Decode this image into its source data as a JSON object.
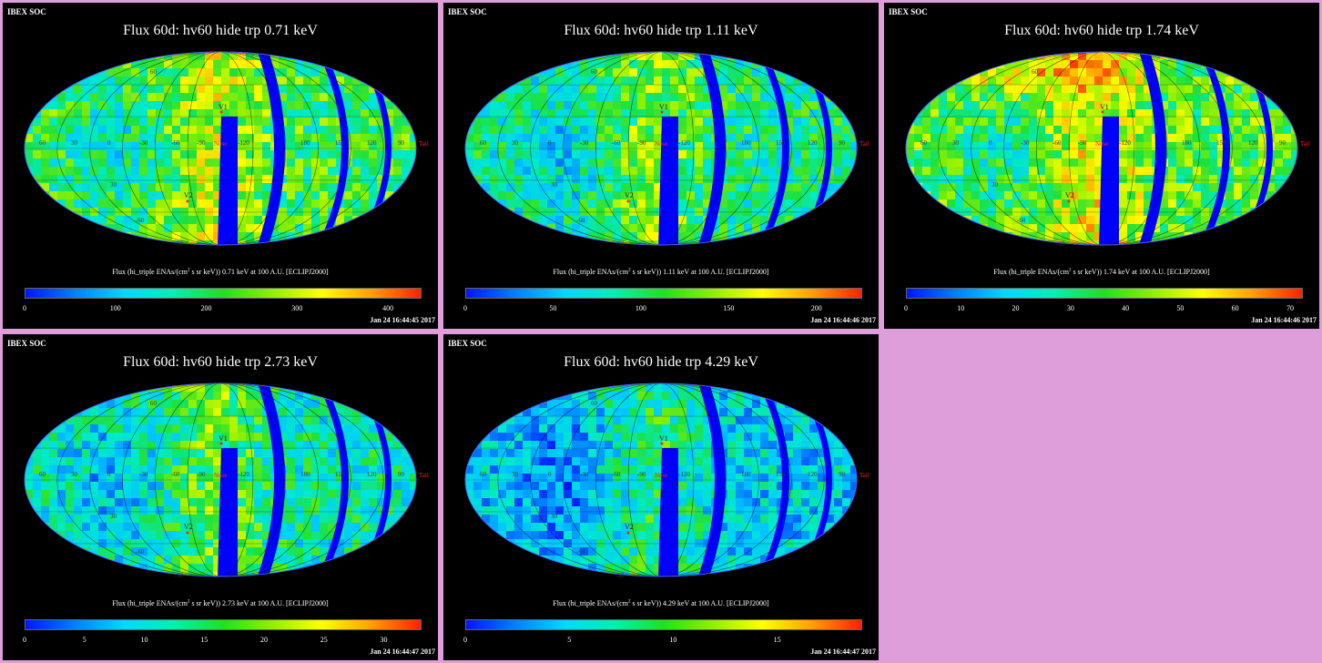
{
  "panels": [
    {
      "soc": "IBEX SOC",
      "title": "Flux 60d: hv60 hide trp 0.71 keV",
      "cb_pre": "Flux (hi_triple ENAs/(cm",
      "cb_sup": "2",
      "cb_post": " s sr keV)) 0.71 keV at 100 A.U. [ECLIPJ2000]",
      "ticks": [
        "0",
        "100",
        "200",
        "300",
        "400"
      ],
      "timestamp": "Jan 24 16:44:45 2017",
      "level": 0.5
    },
    {
      "soc": "IBEX SOC",
      "title": "Flux 60d: hv60 hide trp 1.11 keV",
      "cb_pre": "Flux (hi_triple ENAs/(cm",
      "cb_sup": "2",
      "cb_post": " s sr keV)) 1.11 keV at 100 A.U. [ECLIPJ2000]",
      "ticks": [
        "0",
        "50",
        "100",
        "150",
        "200"
      ],
      "timestamp": "Jan 24 16:44:46 2017",
      "level": 0.42
    },
    {
      "soc": "IBEX SOC",
      "title": "Flux 60d: hv60 hide trp 1.74 keV",
      "cb_pre": "Flux (hi_triple ENAs/(cm",
      "cb_sup": "2",
      "cb_post": " s sr keV)) 1.74 keV at 100 A.U. [ECLIPJ2000]",
      "ticks": [
        "0",
        "10",
        "20",
        "30",
        "40",
        "50",
        "60",
        "70"
      ],
      "timestamp": "Jan 24 16:44:46 2017",
      "level": 0.55
    },
    {
      "soc": "IBEX SOC",
      "title": "Flux 60d: hv60 hide trp 2.73 keV",
      "cb_pre": "Flux (hi_triple ENAs/(cm",
      "cb_sup": "2",
      "cb_post": " s sr keV)) 2.73 keV at 100 A.U. [ECLIPJ2000]",
      "ticks": [
        "0",
        "5",
        "10",
        "15",
        "20",
        "25",
        "30"
      ],
      "timestamp": "Jan 24 16:44:47 2017",
      "level": 0.38
    },
    {
      "soc": "IBEX SOC",
      "title": "Flux 60d: hv60 hide trp 4.29 keV",
      "cb_pre": "Flux (hi_triple ENAs/(cm",
      "cb_sup": "2",
      "cb_post": " s sr keV)) 4.29 keV at 100 A.U. [ECLIPJ2000]",
      "ticks": [
        "0",
        "5",
        "10",
        "15"
      ],
      "timestamp": "Jan 24 16:44:47 2017",
      "level": 0.28
    }
  ],
  "map_labels": {
    "v1": "V1",
    "v2": "V2",
    "nose": "Nose",
    "tail": "Tail",
    "lon": [
      "60",
      "30",
      "0",
      "-30",
      "-60",
      "-90",
      "-120",
      "180",
      "150",
      "120",
      "90"
    ],
    "lat_top": "60",
    "lat_mid": "30",
    "lat_bot": "-30",
    "lat_bot2": "-60",
    "lat_low": "-90"
  },
  "colors": {
    "background": "#dd9ed9",
    "panel": "#000000",
    "gap": "#0000ff",
    "marker": "#ff2020"
  }
}
